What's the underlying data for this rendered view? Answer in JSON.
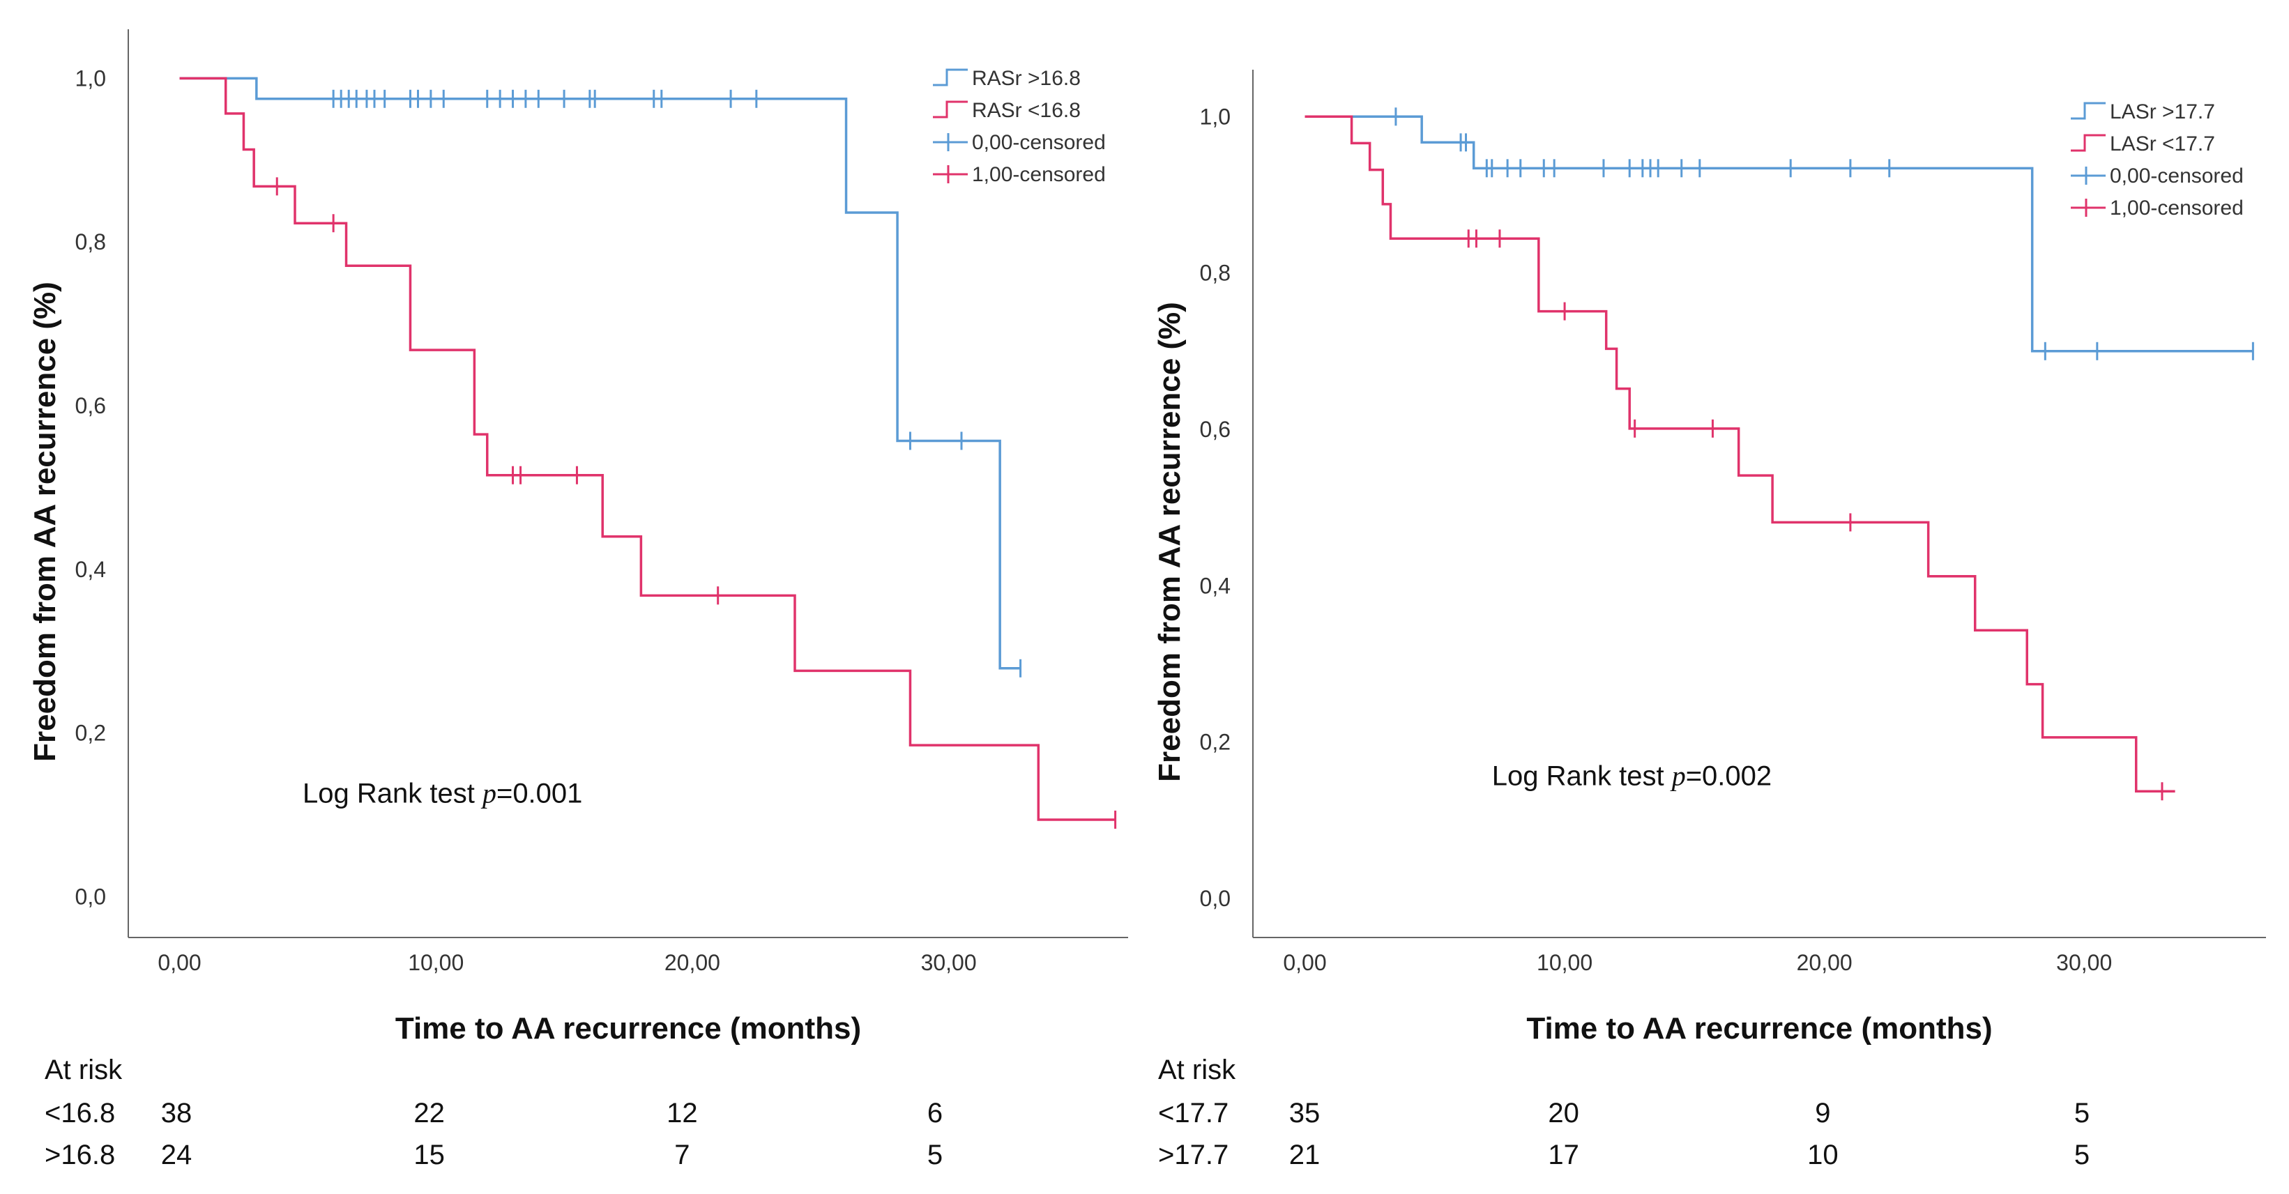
{
  "chart_data": [
    {
      "type": "line",
      "subtype": "kaplan-meier",
      "title": "",
      "xlabel": "Time to AA recurrence (months)",
      "ylabel": "Freedom from AA recurrence (%)",
      "xlim": [
        -2,
        37
      ],
      "ylim": [
        -0.05,
        1.06
      ],
      "x_ticks": [
        0,
        10,
        20,
        30
      ],
      "x_tick_labels": [
        "0,00",
        "10,00",
        "20,00",
        "30,00"
      ],
      "y_ticks": [
        0,
        0.2,
        0.4,
        0.6,
        0.8,
        1.0
      ],
      "y_tick_labels": [
        "0,0",
        "0,2",
        "0,4",
        "0,6",
        "0,8",
        "1,0"
      ],
      "annotation": {
        "prefix": "Log Rank test ",
        "p": "p",
        "value": "=0.001"
      },
      "legend": [
        "RASr >16.8",
        "RASr <16.8",
        "0,00-censored",
        "1,00-censored"
      ],
      "legend_position": "top-right",
      "series": [
        {
          "name": "RASr >16.8",
          "color": "#5b9bd5",
          "x": [
            0,
            3,
            26,
            28,
            32
          ],
          "y": [
            1.0,
            0.975,
            0.836,
            0.557,
            0.279
          ],
          "end_x": 32.8,
          "censored_x": [
            6,
            6.3,
            6.6,
            6.9,
            7.3,
            7.6,
            8,
            9,
            9.3,
            9.8,
            10.3,
            12,
            12.5,
            13,
            13.5,
            14,
            15,
            16,
            16.2,
            18.5,
            18.8,
            21.5,
            22.5,
            28.5,
            30.5,
            32.8
          ],
          "censored_y": [
            0.975,
            0.975,
            0.975,
            0.975,
            0.975,
            0.975,
            0.975,
            0.975,
            0.975,
            0.975,
            0.975,
            0.975,
            0.975,
            0.975,
            0.975,
            0.975,
            0.975,
            0.975,
            0.975,
            0.975,
            0.975,
            0.975,
            0.975,
            0.557,
            0.557,
            0.279
          ]
        },
        {
          "name": "RASr <16.8",
          "color": "#e0336b",
          "x": [
            0,
            1.8,
            2.5,
            2.9,
            4.5,
            6.5,
            9,
            11.5,
            12,
            16.5,
            18,
            24,
            28.5,
            33.5
          ],
          "y": [
            1.0,
            0.957,
            0.913,
            0.868,
            0.823,
            0.771,
            0.668,
            0.565,
            0.515,
            0.44,
            0.368,
            0.276,
            0.185,
            0.094
          ],
          "end_x": 36.5,
          "censored_x": [
            3.8,
            6,
            13,
            13.3,
            15.5,
            21,
            36.5
          ],
          "censored_y": [
            0.868,
            0.823,
            0.515,
            0.515,
            0.515,
            0.368,
            0.094
          ]
        }
      ],
      "at_risk": {
        "title": "At risk",
        "rows": [
          {
            "label": "<16.8",
            "values": [
              "38",
              "22",
              "12",
              "6"
            ]
          },
          {
            "label": ">16.8",
            "values": [
              "24",
              "15",
              "7",
              "5"
            ]
          }
        ]
      }
    },
    {
      "type": "line",
      "subtype": "kaplan-meier",
      "title": "",
      "xlabel": "Time to AA recurrence (months)",
      "ylabel": "Freedom from AA recurrence (%)",
      "xlim": [
        -2,
        37
      ],
      "ylim": [
        -0.05,
        1.06
      ],
      "x_ticks": [
        0,
        10,
        20,
        30
      ],
      "x_tick_labels": [
        "0,00",
        "10,00",
        "20,00",
        "30,00"
      ],
      "y_ticks": [
        0,
        0.2,
        0.4,
        0.6,
        0.8,
        1.0
      ],
      "y_tick_labels": [
        "0,0",
        "0,2",
        "0,4",
        "0,6",
        "0,8",
        "1,0"
      ],
      "annotation": {
        "prefix": "Log Rank test ",
        "p": "p",
        "value": "=0.002"
      },
      "legend": [
        "LASr >17.7",
        "LASr <17.7",
        "0,00-censored",
        "1,00-censored"
      ],
      "legend_position": "top-right",
      "series": [
        {
          "name": "LASr >17.7",
          "color": "#5b9bd5",
          "x": [
            0,
            4.5,
            6.5,
            28
          ],
          "y": [
            1.0,
            0.967,
            0.934,
            0.7
          ],
          "end_x": 36.5,
          "censored_x": [
            3.5,
            6,
            6.2,
            7,
            7.2,
            7.8,
            8.3,
            9.2,
            9.6,
            11.5,
            12.5,
            13,
            13.3,
            13.6,
            14.5,
            15.2,
            18.7,
            21,
            22.5,
            28.5,
            30.5,
            36.5
          ],
          "censored_y": [
            1.0,
            0.967,
            0.967,
            0.934,
            0.934,
            0.934,
            0.934,
            0.934,
            0.934,
            0.934,
            0.934,
            0.934,
            0.934,
            0.934,
            0.934,
            0.934,
            0.934,
            0.934,
            0.934,
            0.7,
            0.7,
            0.7
          ]
        },
        {
          "name": "LASr <17.7",
          "color": "#e0336b",
          "x": [
            0,
            1.8,
            2.5,
            3.0,
            3.3,
            9,
            11.6,
            12,
            12.5,
            16.7,
            18,
            24,
            25.8,
            27.8,
            28.4,
            32
          ],
          "y": [
            1.0,
            0.966,
            0.932,
            0.888,
            0.844,
            0.751,
            0.703,
            0.652,
            0.601,
            0.541,
            0.481,
            0.412,
            0.343,
            0.274,
            0.206,
            0.137
          ],
          "end_x": 33.5,
          "censored_x": [
            6.3,
            6.6,
            7.5,
            10,
            12.7,
            15.7,
            21,
            33
          ],
          "censored_y": [
            0.844,
            0.844,
            0.844,
            0.751,
            0.601,
            0.601,
            0.481,
            0.137
          ]
        }
      ],
      "at_risk": {
        "title": "At risk",
        "rows": [
          {
            "label": "<17.7",
            "values": [
              "35",
              "20",
              "9",
              "5"
            ]
          },
          {
            "label": ">17.7",
            "values": [
              "21",
              "17",
              "10",
              "5"
            ]
          }
        ]
      }
    }
  ]
}
